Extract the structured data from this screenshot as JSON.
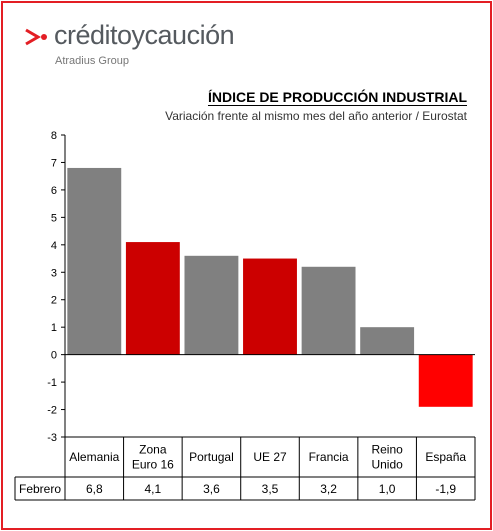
{
  "brand": {
    "name": "créditoycaución",
    "subtitle": "Atradius Group",
    "accent": "#e31e24"
  },
  "chart_data": {
    "type": "bar",
    "title": "ÍNDICE DE PRODUCCIÓN INDUSTRIAL",
    "subtitle": "Variación frente al mismo mes del año anterior / Eurostat",
    "categories": [
      [
        "Alemania"
      ],
      [
        "Zona",
        "Euro 16"
      ],
      [
        "Portugal"
      ],
      [
        "UE 27"
      ],
      [
        "Francia"
      ],
      [
        "Reino",
        "Unido"
      ],
      [
        "España"
      ]
    ],
    "series": [
      {
        "name": "Febrero",
        "values": [
          6.8,
          4.1,
          3.6,
          3.5,
          3.2,
          1.0,
          -1.9
        ],
        "labels": [
          "6,8",
          "4,1",
          "3,6",
          "3,5",
          "3,2",
          "1,0",
          "-1,9"
        ]
      }
    ],
    "bar_colors": [
      "#808080",
      "#cc0000",
      "#808080",
      "#cc0000",
      "#808080",
      "#808080",
      "#ff0000"
    ],
    "ylim": [
      -3,
      8
    ],
    "yticks": [
      -3,
      -2,
      -1,
      0,
      1,
      2,
      3,
      4,
      5,
      6,
      7,
      8
    ],
    "grid": false,
    "data_table": true
  }
}
